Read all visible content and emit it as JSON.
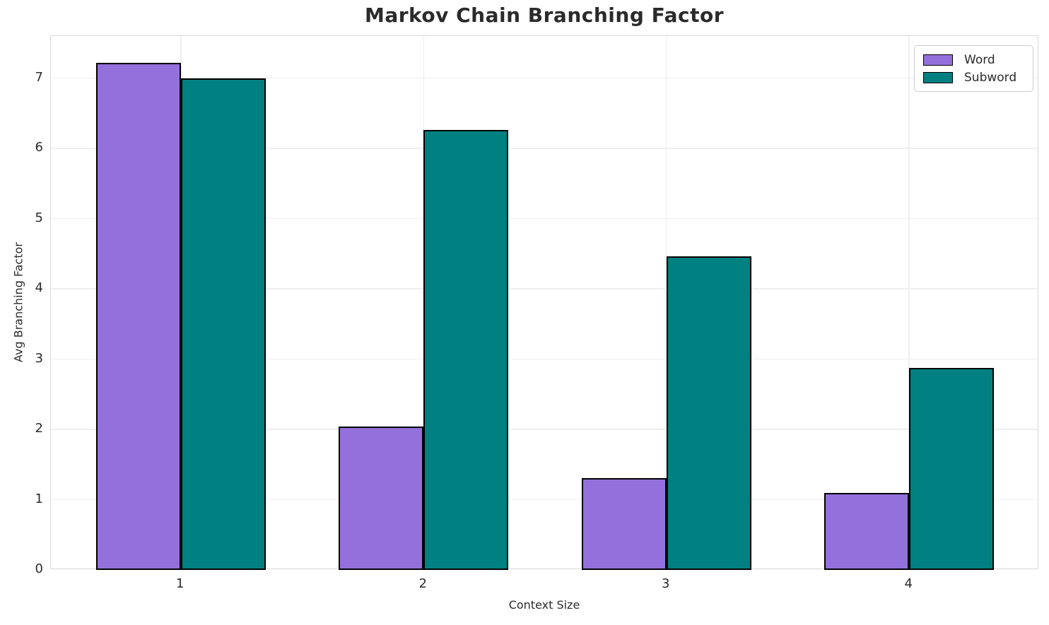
{
  "chart_data": {
    "type": "bar",
    "title": "Markov Chain Branching Factor",
    "xlabel": "Context Size",
    "ylabel": "Avg Branching Factor",
    "categories": [
      "1",
      "2",
      "3",
      "4"
    ],
    "series": [
      {
        "name": "Word",
        "color": "#9370DB",
        "values": [
          7.22,
          2.04,
          1.31,
          1.1
        ]
      },
      {
        "name": "Subword",
        "color": "#008080",
        "values": [
          7.0,
          6.26,
          4.46,
          2.88
        ]
      }
    ],
    "bar_width": 0.35,
    "bar_edge_color": "#000000",
    "xlim": [
      0.465,
      4.535
    ],
    "ylim": [
      0,
      7.6
    ],
    "y_ticks": [
      0,
      1,
      2,
      3,
      4,
      5,
      6,
      7
    ],
    "x_tick_positions": [
      1,
      2,
      3,
      4
    ],
    "grid": true,
    "grid_color": "#efefef",
    "spine_color": "#d9d9d9",
    "text_color": "#2b2b2b",
    "legend_position": "upper right"
  }
}
